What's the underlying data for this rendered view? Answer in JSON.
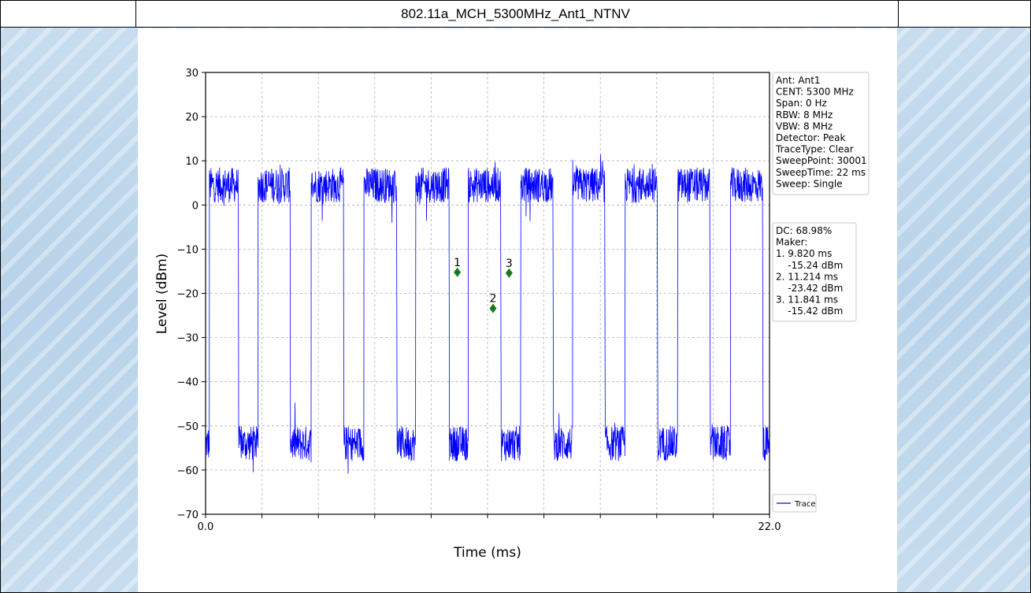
{
  "header": {
    "title": "802.11a_MCH_5300MHz_Ant1_NTNV"
  },
  "chart_data": {
    "type": "line",
    "title": "",
    "xlabel": "Time (ms)",
    "ylabel": "Level (dBm)",
    "xlim": [
      0,
      22
    ],
    "ylim": [
      -70,
      30
    ],
    "x_tick_labels": [
      "0.0",
      "22.0"
    ],
    "y_ticks": [
      30,
      20,
      10,
      0,
      -10,
      -20,
      -30,
      -40,
      -50,
      -60,
      -70
    ],
    "y_tick_labels": [
      "30",
      "20",
      "10",
      "0",
      "−10",
      "−20",
      "−30",
      "−40",
      "−50",
      "−60",
      "−70"
    ],
    "grid": true,
    "legend": {
      "placement": "lower-right",
      "entries": [
        "Trace"
      ]
    },
    "series": [
      {
        "name": "Trace",
        "color": "#0000ff",
        "pulse_on_level_dBm": 4.5,
        "pulse_off_level_dBm": -54,
        "on_intervals_ms": [
          [
            0.15,
            1.28
          ],
          [
            2.05,
            3.3
          ],
          [
            4.12,
            5.38
          ],
          [
            6.18,
            7.46
          ],
          [
            8.2,
            9.5
          ],
          [
            10.25,
            11.52
          ],
          [
            12.3,
            13.56
          ],
          [
            14.32,
            15.58
          ],
          [
            16.37,
            17.63
          ],
          [
            18.42,
            19.68
          ],
          [
            20.48,
            21.74
          ]
        ]
      }
    ],
    "markers": [
      {
        "label": "1",
        "x": 9.82,
        "y": -15.24
      },
      {
        "label": "2",
        "x": 11.214,
        "y": -23.42
      },
      {
        "label": "3",
        "x": 11.841,
        "y": -15.42
      }
    ],
    "info_box": [
      "Ant: Ant1",
      "CENT: 5300 MHz",
      "Span: 0 Hz",
      "RBW: 8 MHz",
      "VBW: 8 MHz",
      "Detector: Peak",
      "TraceType: Clear",
      "SweepPoint: 30001",
      "SweepTime: 22 ms",
      "Sweep: Single"
    ],
    "marker_box": [
      "DC: 68.98%",
      "Maker:",
      "1. 9.820 ms",
      "    -15.24 dBm",
      "2. 11.214 ms",
      "    -23.42 dBm",
      "3. 11.841 ms",
      "    -15.42 dBm"
    ],
    "colors": {
      "trace": "#0000ff",
      "marker": "#1a7a1a"
    }
  }
}
